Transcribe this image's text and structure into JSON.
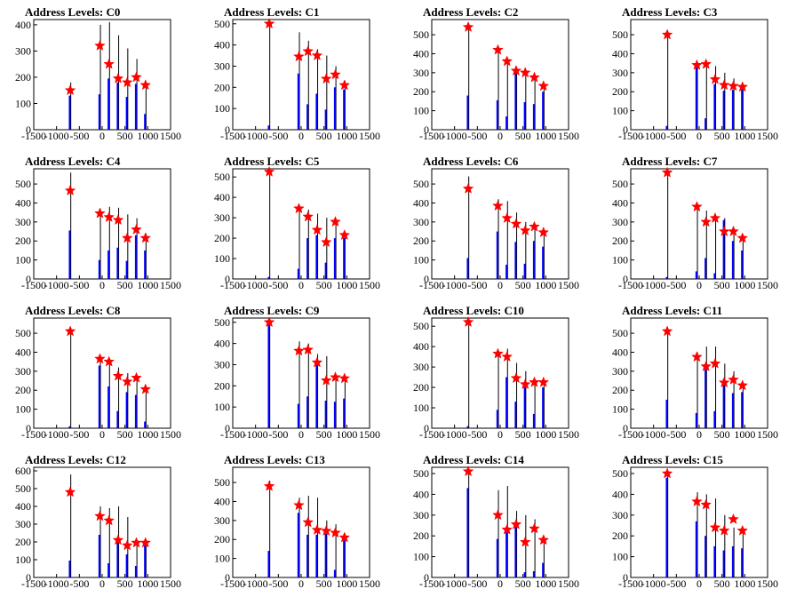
{
  "chart_data": {
    "type": "bar",
    "title_prefix": "Address Levels: ",
    "xlim": [
      -1500,
      1500
    ],
    "x_ticks": [
      -1500,
      -1000,
      -500,
      0,
      500,
      1000,
      1500
    ],
    "marker_x": [
      -700,
      -50,
      150,
      350,
      550,
      750,
      950
    ],
    "colors": {
      "histogram": "#0000ff",
      "spike": "#000000",
      "marker": "#ff0000",
      "frame": "#000000"
    },
    "panels": [
      {
        "title": "Address Levels: C0",
        "ymax": 420,
        "y_ticks": [
          0,
          100,
          200,
          300,
          400
        ],
        "markers": [
          150,
          320,
          250,
          195,
          180,
          200,
          170
        ],
        "spikes": [
          180,
          400,
          410,
          360,
          310,
          270,
          180
        ],
        "bars": [
          130,
          135,
          195,
          180,
          125,
          175,
          60
        ]
      },
      {
        "title": "Address Levels: C1",
        "ymax": 520,
        "y_ticks": [
          0,
          100,
          200,
          300,
          400,
          500
        ],
        "markers": [
          500,
          345,
          370,
          350,
          240,
          260,
          210
        ],
        "spikes": [
          510,
          460,
          420,
          380,
          350,
          300,
          230
        ],
        "bars": [
          20,
          265,
          120,
          170,
          95,
          200,
          190
        ]
      },
      {
        "title": "Address Levels: C2",
        "ymax": 580,
        "y_ticks": [
          0,
          100,
          200,
          300,
          400,
          500
        ],
        "markers": [
          540,
          420,
          360,
          310,
          300,
          275,
          230
        ],
        "spikes": [
          560,
          420,
          370,
          330,
          310,
          290,
          240
        ],
        "bars": [
          180,
          155,
          70,
          300,
          145,
          135,
          200
        ]
      },
      {
        "title": "Address Levels: C3",
        "ymax": 580,
        "y_ticks": [
          0,
          100,
          200,
          300,
          400,
          500
        ],
        "markers": [
          500,
          340,
          345,
          265,
          235,
          230,
          225
        ],
        "spikes": [
          520,
          350,
          360,
          335,
          300,
          270,
          240
        ],
        "bars": [
          20,
          340,
          60,
          240,
          205,
          210,
          220
        ]
      },
      {
        "title": "Address Levels: C4",
        "ymax": 580,
        "y_ticks": [
          0,
          100,
          200,
          300,
          400,
          500
        ],
        "markers": [
          465,
          345,
          325,
          310,
          215,
          260,
          215
        ],
        "spikes": [
          560,
          370,
          380,
          375,
          340,
          320,
          240
        ],
        "bars": [
          255,
          100,
          150,
          165,
          95,
          230,
          150
        ]
      },
      {
        "title": "Address Levels: C5",
        "ymax": 540,
        "y_ticks": [
          0,
          100,
          200,
          300,
          400,
          500
        ],
        "markers": [
          525,
          345,
          305,
          240,
          180,
          280,
          215
        ],
        "spikes": [
          540,
          360,
          340,
          320,
          300,
          290,
          230
        ],
        "bars": [
          10,
          50,
          200,
          215,
          80,
          200,
          200
        ]
      },
      {
        "title": "Address Levels: C6",
        "ymax": 580,
        "y_ticks": [
          0,
          100,
          200,
          300,
          400,
          500
        ],
        "markers": [
          475,
          385,
          320,
          290,
          255,
          275,
          245
        ],
        "spikes": [
          540,
          420,
          410,
          350,
          300,
          290,
          250
        ],
        "bars": [
          110,
          250,
          75,
          195,
          80,
          200,
          170
        ]
      },
      {
        "title": "Address Levels: C7",
        "ymax": 580,
        "y_ticks": [
          0,
          100,
          200,
          300,
          400,
          500
        ],
        "markers": [
          560,
          380,
          300,
          320,
          250,
          250,
          215
        ],
        "spikes": [
          570,
          390,
          360,
          330,
          320,
          270,
          230
        ],
        "bars": [
          10,
          40,
          110,
          30,
          310,
          200,
          150
        ]
      },
      {
        "title": "Address Levels: C8",
        "ymax": 580,
        "y_ticks": [
          0,
          100,
          200,
          300,
          400,
          500
        ],
        "markers": [
          510,
          365,
          350,
          275,
          245,
          265,
          205
        ],
        "spikes": [
          520,
          370,
          360,
          320,
          290,
          270,
          220
        ],
        "bars": [
          10,
          330,
          220,
          90,
          190,
          175,
          35
        ]
      },
      {
        "title": "Address Levels: C9",
        "ymax": 520,
        "y_ticks": [
          0,
          100,
          200,
          300,
          400,
          500
        ],
        "markers": [
          500,
          365,
          370,
          310,
          225,
          240,
          235
        ],
        "spikes": [
          510,
          410,
          400,
          350,
          340,
          250,
          240
        ],
        "bars": [
          490,
          115,
          150,
          300,
          130,
          125,
          140
        ]
      },
      {
        "title": "Address Levels: C10",
        "ymax": 540,
        "y_ticks": [
          0,
          100,
          200,
          300,
          400,
          500
        ],
        "markers": [
          520,
          365,
          350,
          245,
          215,
          225,
          225
        ],
        "spikes": [
          540,
          380,
          390,
          320,
          280,
          240,
          230
        ],
        "bars": [
          10,
          90,
          250,
          130,
          200,
          70,
          200
        ]
      },
      {
        "title": "Address Levels: C11",
        "ymax": 580,
        "y_ticks": [
          0,
          100,
          200,
          300,
          400,
          500
        ],
        "markers": [
          510,
          375,
          325,
          340,
          240,
          255,
          225
        ],
        "spikes": [
          520,
          400,
          430,
          430,
          340,
          300,
          240
        ],
        "bars": [
          150,
          80,
          310,
          90,
          260,
          185,
          190
        ]
      },
      {
        "title": "Address Levels: C12",
        "ymax": 620,
        "y_ticks": [
          0,
          100,
          200,
          300,
          400,
          500,
          600
        ],
        "markers": [
          480,
          345,
          320,
          210,
          180,
          195,
          195
        ],
        "spikes": [
          580,
          400,
          390,
          400,
          340,
          210,
          200
        ],
        "bars": [
          95,
          240,
          80,
          195,
          130,
          65,
          195
        ]
      },
      {
        "title": "Address Levels: C13",
        "ymax": 580,
        "y_ticks": [
          0,
          100,
          200,
          300,
          400,
          500
        ],
        "markers": [
          480,
          380,
          290,
          250,
          245,
          235,
          210
        ],
        "spikes": [
          510,
          420,
          430,
          420,
          300,
          280,
          230
        ],
        "bars": [
          140,
          340,
          225,
          225,
          230,
          40,
          195
        ]
      },
      {
        "title": "Address Levels: C14",
        "ymax": 530,
        "y_ticks": [
          0,
          100,
          200,
          300,
          400,
          500
        ],
        "markers": [
          510,
          300,
          230,
          255,
          170,
          235,
          180
        ],
        "spikes": [
          520,
          420,
          440,
          320,
          300,
          280,
          200
        ],
        "bars": [
          430,
          185,
          225,
          250,
          25,
          30,
          70
        ]
      },
      {
        "title": "Address Levels: C15",
        "ymax": 530,
        "y_ticks": [
          0,
          100,
          200,
          300,
          400,
          500
        ],
        "markers": [
          500,
          365,
          350,
          240,
          225,
          280,
          225
        ],
        "spikes": [
          510,
          410,
          400,
          380,
          300,
          240,
          230
        ],
        "bars": [
          480,
          270,
          200,
          150,
          130,
          150,
          140
        ]
      }
    ]
  }
}
